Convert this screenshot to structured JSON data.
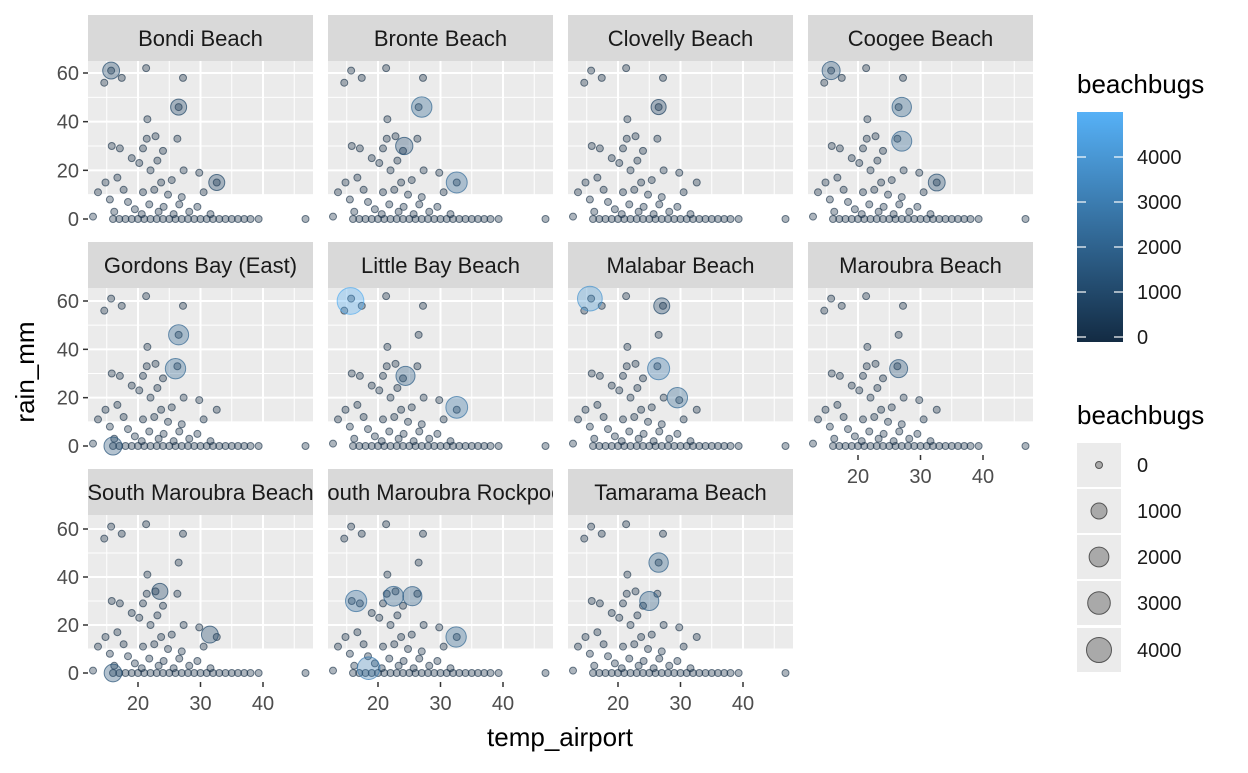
{
  "chart_data": {
    "type": "scatter",
    "facet_by": "site",
    "xlabel": "temp_airport",
    "ylabel": "rain_mm",
    "xlim": [
      12,
      48
    ],
    "ylim": [
      -3,
      66
    ],
    "x_ticks": [
      20,
      30,
      40
    ],
    "y_ticks": [
      0,
      20,
      40,
      60
    ],
    "grid": true,
    "size_by": "beachbugs",
    "color_by": "beachbugs",
    "panels": [
      "Bondi Beach",
      "Bronte Beach",
      "Clovelly Beach",
      "Coogee Beach",
      "Gordons Bay (East)",
      "Little Bay Beach",
      "Malabar Beach",
      "Maroubra Beach",
      "South Maroubra Beach",
      "South Maroubra Rockpool",
      "Tamarama Beach"
    ],
    "weather": [
      {
        "temp_airport": 15.7,
        "rain_mm": 61
      },
      {
        "temp_airport": 21.3,
        "rain_mm": 62
      },
      {
        "temp_airport": 14.6,
        "rain_mm": 56
      },
      {
        "temp_airport": 17.4,
        "rain_mm": 58
      },
      {
        "temp_airport": 27.2,
        "rain_mm": 58
      },
      {
        "temp_airport": 26.5,
        "rain_mm": 46
      },
      {
        "temp_airport": 21.5,
        "rain_mm": 41
      },
      {
        "temp_airport": 15.8,
        "rain_mm": 30
      },
      {
        "temp_airport": 17.1,
        "rain_mm": 29
      },
      {
        "temp_airport": 20.8,
        "rain_mm": 29
      },
      {
        "temp_airport": 21.4,
        "rain_mm": 33
      },
      {
        "temp_airport": 22.8,
        "rain_mm": 34
      },
      {
        "temp_airport": 24.0,
        "rain_mm": 28
      },
      {
        "temp_airport": 26.3,
        "rain_mm": 33
      },
      {
        "temp_airport": 23.1,
        "rain_mm": 24
      },
      {
        "temp_airport": 19.0,
        "rain_mm": 25
      },
      {
        "temp_airport": 20.2,
        "rain_mm": 23
      },
      {
        "temp_airport": 22.0,
        "rain_mm": 20
      },
      {
        "temp_airport": 27.3,
        "rain_mm": 20
      },
      {
        "temp_airport": 29.8,
        "rain_mm": 19
      },
      {
        "temp_airport": 32.6,
        "rain_mm": 15
      },
      {
        "temp_airport": 14.8,
        "rain_mm": 15
      },
      {
        "temp_airport": 16.7,
        "rain_mm": 17
      },
      {
        "temp_airport": 23.7,
        "rain_mm": 15
      },
      {
        "temp_airport": 25.4,
        "rain_mm": 16
      },
      {
        "temp_airport": 30.5,
        "rain_mm": 11
      },
      {
        "temp_airport": 13.6,
        "rain_mm": 11
      },
      {
        "temp_airport": 17.7,
        "rain_mm": 12
      },
      {
        "temp_airport": 20.8,
        "rain_mm": 11
      },
      {
        "temp_airport": 22.6,
        "rain_mm": 12
      },
      {
        "temp_airport": 24.8,
        "rain_mm": 10
      },
      {
        "temp_airport": 27.0,
        "rain_mm": 9
      },
      {
        "temp_airport": 15.5,
        "rain_mm": 8
      },
      {
        "temp_airport": 18.4,
        "rain_mm": 7
      },
      {
        "temp_airport": 21.8,
        "rain_mm": 6
      },
      {
        "temp_airport": 24.1,
        "rain_mm": 5
      },
      {
        "temp_airport": 26.6,
        "rain_mm": 6
      },
      {
        "temp_airport": 29.5,
        "rain_mm": 5
      },
      {
        "temp_airport": 19.5,
        "rain_mm": 4
      },
      {
        "temp_airport": 23.3,
        "rain_mm": 3
      },
      {
        "temp_airport": 16.2,
        "rain_mm": 3
      },
      {
        "temp_airport": 28.2,
        "rain_mm": 3
      },
      {
        "temp_airport": 12.8,
        "rain_mm": 1
      },
      {
        "temp_airport": 25.7,
        "rain_mm": 2
      },
      {
        "temp_airport": 31.6,
        "rain_mm": 2
      },
      {
        "temp_airport": 20.6,
        "rain_mm": 2
      },
      {
        "temp_airport": 16.0,
        "rain_mm": 0
      },
      {
        "temp_airport": 17.0,
        "rain_mm": 0
      },
      {
        "temp_airport": 18.0,
        "rain_mm": 0
      },
      {
        "temp_airport": 19.0,
        "rain_mm": 0
      },
      {
        "temp_airport": 20.0,
        "rain_mm": 0
      },
      {
        "temp_airport": 21.0,
        "rain_mm": 0
      },
      {
        "temp_airport": 22.0,
        "rain_mm": 0
      },
      {
        "temp_airport": 23.0,
        "rain_mm": 0
      },
      {
        "temp_airport": 24.0,
        "rain_mm": 0
      },
      {
        "temp_airport": 25.0,
        "rain_mm": 0
      },
      {
        "temp_airport": 26.0,
        "rain_mm": 0
      },
      {
        "temp_airport": 27.0,
        "rain_mm": 0
      },
      {
        "temp_airport": 28.0,
        "rain_mm": 0
      },
      {
        "temp_airport": 29.0,
        "rain_mm": 0
      },
      {
        "temp_airport": 30.0,
        "rain_mm": 0
      },
      {
        "temp_airport": 31.0,
        "rain_mm": 0
      },
      {
        "temp_airport": 32.0,
        "rain_mm": 0
      },
      {
        "temp_airport": 33.0,
        "rain_mm": 0
      },
      {
        "temp_airport": 34.0,
        "rain_mm": 0
      },
      {
        "temp_airport": 35.0,
        "rain_mm": 0
      },
      {
        "temp_airport": 36.0,
        "rain_mm": 0
      },
      {
        "temp_airport": 37.0,
        "rain_mm": 0
      },
      {
        "temp_airport": 38.0,
        "rain_mm": 0
      },
      {
        "temp_airport": 39.3,
        "rain_mm": 0
      },
      {
        "temp_airport": 46.8,
        "rain_mm": 0
      }
    ],
    "highlights": {
      "Bondi Beach": [
        {
          "temp_airport": 15.7,
          "rain_mm": 61,
          "beachbugs": 1200
        },
        {
          "temp_airport": 26.5,
          "rain_mm": 46,
          "beachbugs": 1000
        },
        {
          "temp_airport": 32.6,
          "rain_mm": 15,
          "beachbugs": 1000
        }
      ],
      "Bronte Beach": [
        {
          "temp_airport": 27.0,
          "rain_mm": 46,
          "beachbugs": 2200
        },
        {
          "temp_airport": 32.6,
          "rain_mm": 15,
          "beachbugs": 2400
        },
        {
          "temp_airport": 24.2,
          "rain_mm": 30,
          "beachbugs": 1300
        }
      ],
      "Clovelly Beach": [
        {
          "temp_airport": 26.5,
          "rain_mm": 46,
          "beachbugs": 800
        }
      ],
      "Coogee Beach": [
        {
          "temp_airport": 15.7,
          "rain_mm": 61,
          "beachbugs": 1500
        },
        {
          "temp_airport": 27.0,
          "rain_mm": 46,
          "beachbugs": 1900
        },
        {
          "temp_airport": 27.0,
          "rain_mm": 32,
          "beachbugs": 2100
        },
        {
          "temp_airport": 32.6,
          "rain_mm": 15,
          "beachbugs": 1200
        }
      ],
      "Gordons Bay (East)": [
        {
          "temp_airport": 26.5,
          "rain_mm": 46,
          "beachbugs": 2100
        },
        {
          "temp_airport": 26.0,
          "rain_mm": 32,
          "beachbugs": 2200
        },
        {
          "temp_airport": 16.0,
          "rain_mm": 0,
          "beachbugs": 1500
        }
      ],
      "Little Bay Beach": [
        {
          "temp_airport": 15.6,
          "rain_mm": 60,
          "beachbugs": 4800
        },
        {
          "temp_airport": 32.6,
          "rain_mm": 16,
          "beachbugs": 2700
        },
        {
          "temp_airport": 24.4,
          "rain_mm": 29,
          "beachbugs": 1800
        }
      ],
      "Malabar Beach": [
        {
          "temp_airport": 15.5,
          "rain_mm": 61,
          "beachbugs": 3900
        },
        {
          "temp_airport": 27.0,
          "rain_mm": 58,
          "beachbugs": 1000
        },
        {
          "temp_airport": 26.5,
          "rain_mm": 32,
          "beachbugs": 2800
        },
        {
          "temp_airport": 29.5,
          "rain_mm": 20,
          "beachbugs": 2200
        }
      ],
      "Maroubra Beach": [
        {
          "temp_airport": 26.5,
          "rain_mm": 32,
          "beachbugs": 1500
        }
      ],
      "South Maroubra Beach": [
        {
          "temp_airport": 23.5,
          "rain_mm": 34,
          "beachbugs": 1000
        },
        {
          "temp_airport": 31.5,
          "rain_mm": 16,
          "beachbugs": 1200
        },
        {
          "temp_airport": 16.0,
          "rain_mm": 0,
          "beachbugs": 1400
        }
      ],
      "South Maroubra Rockpool": [
        {
          "temp_airport": 16.5,
          "rain_mm": 30,
          "beachbugs": 2500
        },
        {
          "temp_airport": 22.5,
          "rain_mm": 32,
          "beachbugs": 2000
        },
        {
          "temp_airport": 25.5,
          "rain_mm": 32,
          "beachbugs": 1800
        },
        {
          "temp_airport": 32.5,
          "rain_mm": 15,
          "beachbugs": 2200
        },
        {
          "temp_airport": 18.5,
          "rain_mm": 2,
          "beachbugs": 3000
        }
      ],
      "Tamarama Beach": [
        {
          "temp_airport": 26.5,
          "rain_mm": 46,
          "beachbugs": 1900
        },
        {
          "temp_airport": 25.0,
          "rain_mm": 30,
          "beachbugs": 1800
        }
      ]
    },
    "legend_color": {
      "title": "beachbugs",
      "labels": [
        "4000",
        "3000",
        "2000",
        "1000",
        "0"
      ],
      "values": [
        4000,
        3000,
        2000,
        1000,
        0
      ],
      "low_color": "#132B43",
      "high_color": "#56B1F7",
      "max_value": 5000
    },
    "legend_size": {
      "title": "beachbugs",
      "labels": [
        "0",
        "1000",
        "2000",
        "3000",
        "4000"
      ],
      "values": [
        0,
        1000,
        2000,
        3000,
        4000
      ]
    },
    "colors": {
      "panel_background": "#EBEBEB",
      "strip_background": "#D9D9D9",
      "grid": "#FFFFFF",
      "point_stroke": "#132B43"
    }
  }
}
